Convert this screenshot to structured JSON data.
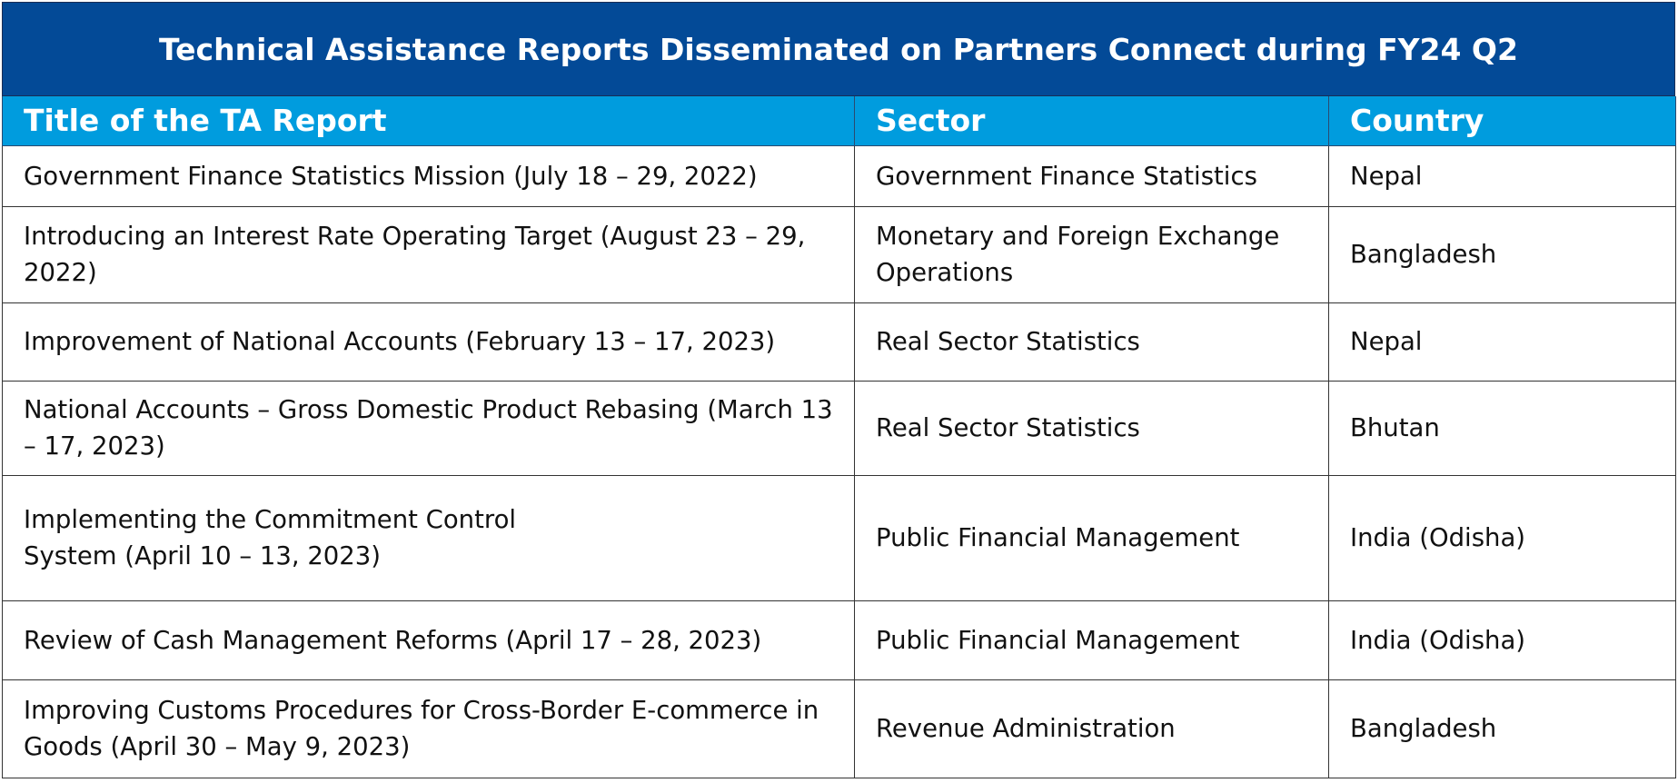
{
  "title": "Technical Assistance Reports Disseminated on Partners Connect during FY24 Q2",
  "colors": {
    "title_background": "#034a97",
    "header_background": "#009cde",
    "header_text": "#ffffff"
  },
  "headers": {
    "title": "Title of the TA Report",
    "sector": "Sector",
    "country": "Country"
  },
  "rows": [
    {
      "title": "Government Finance Statistics Mission (July 18 – 29, 2022)",
      "sector": "Government Finance Statistics",
      "country": "Nepal"
    },
    {
      "title": "Introducing an Interest Rate Operating Target (August 23 – 29, 2022)",
      "sector": "Monetary and Foreign Exchange Operations",
      "country": "Bangladesh"
    },
    {
      "title": "Improvement of National Accounts (February 13 – 17, 2023)",
      "sector": "Real Sector Statistics",
      "country": "Nepal"
    },
    {
      "title": "National Accounts – Gross Domestic Product Rebasing (March 13 – 17, 2023)",
      "sector": "Real Sector Statistics",
      "country": "Bhutan"
    },
    {
      "title": "Implementing the Commitment Control\nSystem (April 10 – 13, 2023)",
      "sector": "Public Financial Management",
      "country": "India (Odisha)"
    },
    {
      "title": "Review of Cash Management Reforms (April 17 – 28, 2023)",
      "sector": "Public Financial Management",
      "country": "India (Odisha)"
    },
    {
      "title": "Improving Customs Procedures for Cross-Border E-commerce in Goods (April 30 – May 9, 2023)",
      "sector": "Revenue Administration",
      "country": "Bangladesh"
    }
  ]
}
